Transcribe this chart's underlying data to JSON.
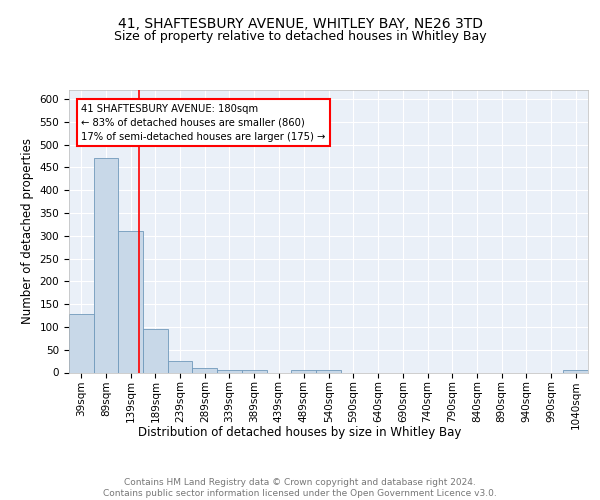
{
  "title1": "41, SHAFTESBURY AVENUE, WHITLEY BAY, NE26 3TD",
  "title2": "Size of property relative to detached houses in Whitley Bay",
  "xlabel": "Distribution of detached houses by size in Whitley Bay",
  "ylabel": "Number of detached properties",
  "bin_labels": [
    "39sqm",
    "89sqm",
    "139sqm",
    "189sqm",
    "239sqm",
    "289sqm",
    "339sqm",
    "389sqm",
    "439sqm",
    "489sqm",
    "540sqm",
    "590sqm",
    "640sqm",
    "690sqm",
    "740sqm",
    "790sqm",
    "840sqm",
    "890sqm",
    "940sqm",
    "990sqm",
    "1040sqm"
  ],
  "bin_edges": [
    39,
    89,
    139,
    189,
    239,
    289,
    339,
    389,
    439,
    489,
    540,
    590,
    640,
    690,
    740,
    790,
    840,
    890,
    940,
    990,
    1040
  ],
  "bar_heights": [
    128,
    470,
    310,
    95,
    25,
    10,
    5,
    5,
    0,
    5,
    5,
    0,
    0,
    0,
    0,
    0,
    0,
    0,
    0,
    0,
    5
  ],
  "bar_color": "#c8d8e8",
  "bar_edge_color": "#7099bb",
  "red_line_x": 180,
  "annotation_text": "41 SHAFTESBURY AVENUE: 180sqm\n← 83% of detached houses are smaller (860)\n17% of semi-detached houses are larger (175) →",
  "annotation_box_color": "white",
  "annotation_box_edge": "red",
  "ylim": [
    0,
    620
  ],
  "yticks": [
    0,
    50,
    100,
    150,
    200,
    250,
    300,
    350,
    400,
    450,
    500,
    550,
    600
  ],
  "footer_text": "Contains HM Land Registry data © Crown copyright and database right 2024.\nContains public sector information licensed under the Open Government Licence v3.0.",
  "bg_color": "#eaf0f8",
  "grid_color": "#ffffff",
  "title1_fontsize": 10,
  "title2_fontsize": 9,
  "xlabel_fontsize": 8.5,
  "ylabel_fontsize": 8.5,
  "tick_fontsize": 7.5,
  "footer_fontsize": 6.5
}
